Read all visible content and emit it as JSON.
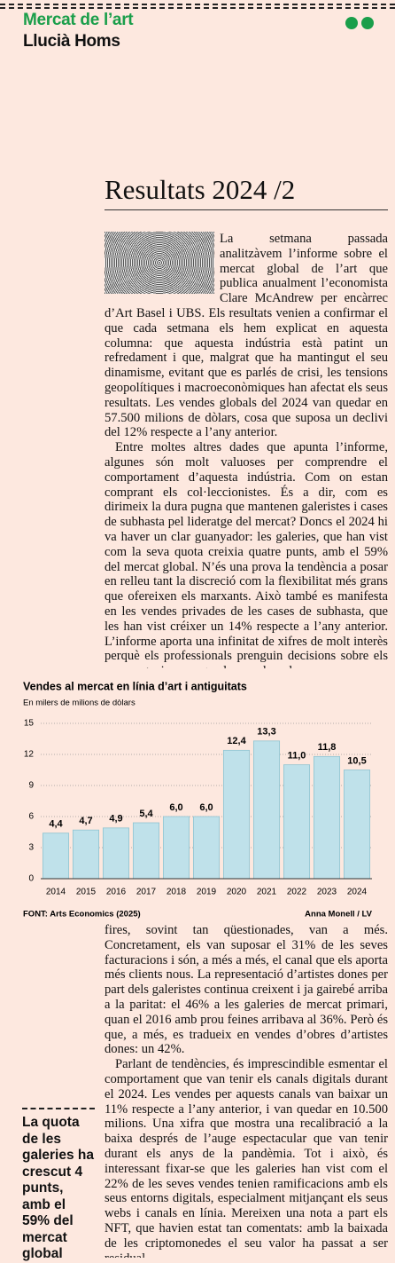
{
  "header": {
    "section": "Mercat de l’art",
    "author": "Llucià Homs"
  },
  "headline": "Resultats 2024 /2",
  "body_top": [
    "La setmana passada analitzàvem l’informe sobre el mercat global de l’art que publica anualment l’economista Clare McAndrew per encàrrec d’Art Basel i UBS. Els resultats venien a confirmar el que cada setmana els hem explicat en aquesta columna: que aquesta indústria està patint un refredament i que, malgrat que ha mantingut el seu dinamisme, evitant que es parlés de crisi, les tensions geopolítiques i macroeconòmiques han afectat els seus resultats. Les vendes globals del 2024 van quedar en 57.500 milions de dòlars, cosa que suposa un declivi del 12% respecte a l’any anterior.",
    "Entre moltes altres dades que apunta l’informe, algunes són molt valuoses per comprendre el comportament d’aquesta indústria. Com on estan comprant els col·leccionistes. És a dir, com es dirimeix la dura pugna que mantenen galeristes i cases de subhasta pel lideratge del mercat? Doncs el 2024 hi va haver un clar guanyador: les galeries, que han vist com la seva quota creixia quatre punts, amb el 59% del mercat global. N’és una prova la tendència a posar en relleu tant la discreció com la flexibilitat més grans que ofereixen els marxants. Això també es manifesta en les vendes privades de les cases de subhasta, que les han vist créixer un 14% respecte a l’any anterior. L’informe aporta una infinitat de xifres de molt interès perquè els professionals prenguin decisions sobre els seus negocis, com que les vendes a les"
  ],
  "chart_data": {
    "type": "bar",
    "title": "Vendes al mercat en línia d’art i antiguitats",
    "subtitle": "En milers de milions de dòlars",
    "categories": [
      "2014",
      "2015",
      "2016",
      "2017",
      "2018",
      "2019",
      "2020",
      "2021",
      "2022",
      "2023",
      "2024"
    ],
    "values": [
      4.4,
      4.7,
      4.9,
      5.4,
      6.0,
      6.0,
      12.4,
      13.3,
      11.0,
      11.8,
      10.5
    ],
    "value_labels": [
      "4,4",
      "4,7",
      "4,9",
      "5,4",
      "6,0",
      "6,0",
      "12,4",
      "13,3",
      "11,0",
      "11,8",
      "10,5"
    ],
    "color": "#bfe1ea",
    "ylim": [
      0,
      15
    ],
    "yticks": [
      0,
      3,
      6,
      9,
      12,
      15
    ],
    "grid": true,
    "source": "FONT: Arts Economics (2025)",
    "credit": "Anna Monell / LV"
  },
  "body_bottom": [
    "fires, sovint tan qüestionades, van a més. Concretament, els van suposar el 31% de les seves facturacions i són, a més a més, el canal que els aporta més clients nous. La representació d’artistes dones per part dels galeristes continua creixent i ja gairebé arriba a la paritat: el 46% a les galeries de mercat primari, quan el 2016 amb prou feines arribava al 36%. Però és que, a més, es tradueix en vendes d’obres d’artistes dones: un 42%.",
    "Parlant de tendències, és imprescindible esmentar el comportament que van tenir els canals digitals durant el 2024. Les vendes per aquests canals van baixar un 11% respecte a l’any anterior, i van quedar en 10.500 milions. Una xifra que mostra una recalibració a la baixa després de l’auge espectacular que van tenir durant els anys de la pandèmia. Tot i això, és interessant fixar-se que les galeries han vist com el 22% de les seves vendes tenien ramificacions amb els seus entorns digitals, especialment mitjançant els seus webs i canals en línia. Mereixen una nota a part els NFT, que havien estat tan comentats: amb la baixada de les criptomonedes el seu valor ha passat a ser residual."
  ],
  "pullquote": "La quota de les galeries ha crescut 4 punts, amb el 59% del mercat global"
}
